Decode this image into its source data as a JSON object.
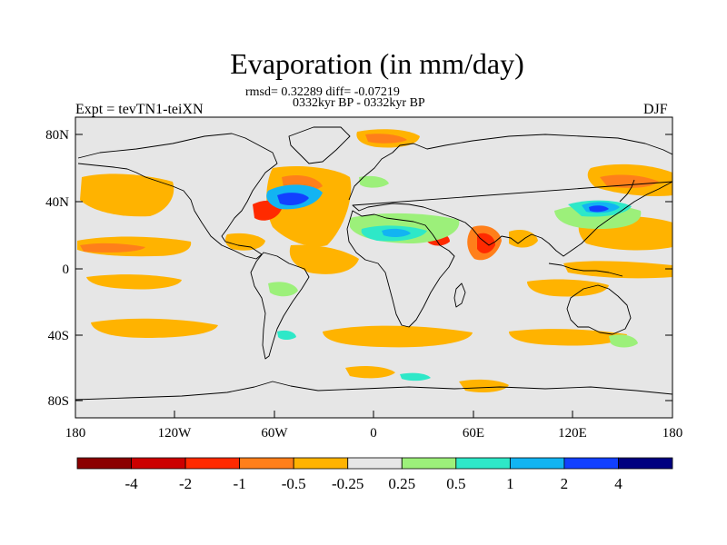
{
  "title": "Evaporation (in mm/day)",
  "stats_line": "rmsd= 0.32289 diff= -0.07219",
  "period_line": "0332kyr BP - 0332kyr BP",
  "left_label": "Expt = tevTN1-teiXN",
  "right_label": "DJF",
  "axes": {
    "lat_ticks": [
      "80N",
      "40N",
      "0",
      "40S",
      "80S"
    ],
    "lon_ticks": [
      "180",
      "120W",
      "60W",
      "0",
      "60E",
      "120E",
      "180"
    ]
  },
  "colorbar": {
    "colors": [
      "#8b0000",
      "#cc0000",
      "#ff2a00",
      "#ff7f1a",
      "#ffb300",
      "#e6e6e6",
      "#9cf07a",
      "#2ee8c8",
      "#12b4f2",
      "#1240ff",
      "#000080"
    ],
    "labels": [
      "-4",
      "-2",
      "-1",
      "-0.5",
      "-0.25",
      "0.25",
      "0.5",
      "1",
      "2",
      "4"
    ]
  },
  "colors": {
    "background": "#ffffff",
    "map_fill": "#e6e6e6",
    "coast": "#000000"
  }
}
